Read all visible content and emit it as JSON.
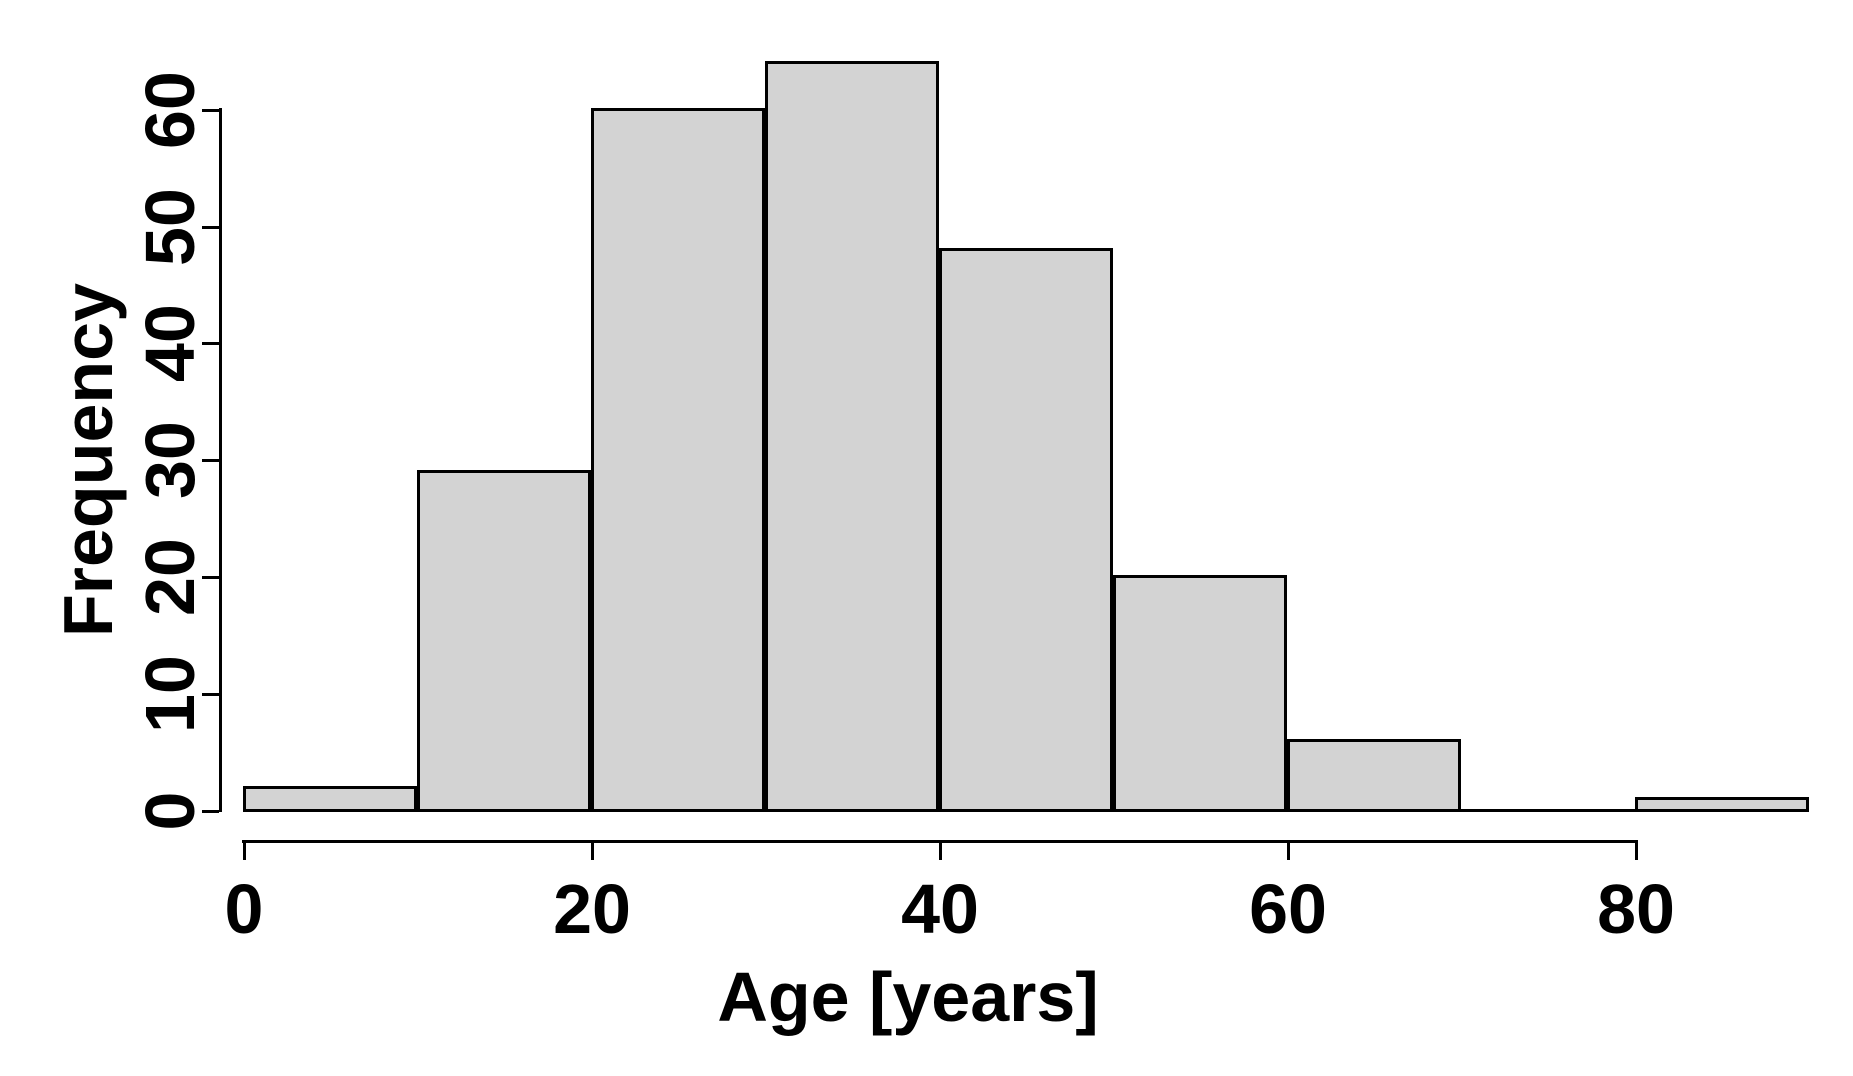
{
  "figure": {
    "background_color": "#ffffff",
    "axis_color": "#000000",
    "text_color": "#000000"
  },
  "chart_data": {
    "type": "bar",
    "subtype": "histogram",
    "title": "",
    "xlabel": "Age [years]",
    "ylabel": "Frequency",
    "bin_width": 10,
    "bin_edges": [
      0,
      10,
      20,
      30,
      40,
      50,
      60,
      70,
      80,
      90
    ],
    "bin_starts": [
      0,
      10,
      20,
      30,
      40,
      50,
      60,
      70,
      80
    ],
    "categories": [
      "0-10",
      "10-20",
      "20-30",
      "30-40",
      "40-50",
      "50-60",
      "60-70",
      "70-80",
      "80-90"
    ],
    "values": [
      2,
      29,
      60,
      64,
      48,
      20,
      6,
      0,
      1
    ],
    "x_ticks": [
      0,
      20,
      40,
      60,
      80
    ],
    "y_ticks": [
      0,
      10,
      20,
      30,
      40,
      50,
      60
    ],
    "xlim": [
      0,
      90
    ],
    "ylim": [
      0,
      64
    ],
    "grid": false,
    "legend": null,
    "bar_fill_color": "#d3d3d3",
    "bar_border_color": "#000000"
  }
}
